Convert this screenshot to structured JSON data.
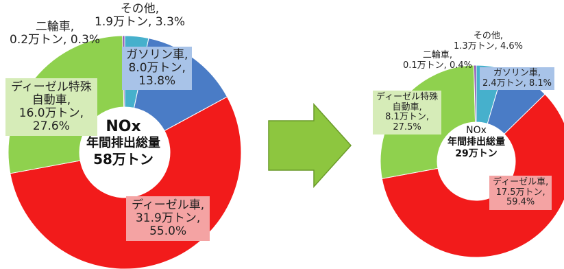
{
  "chart_data": [
    {
      "type": "pie",
      "variant": "donut",
      "center_text": [
        "NOx",
        "年間排出総量",
        "58万トン"
      ],
      "start": "top, clockwise",
      "slices": [
        {
          "name": "その他",
          "amount": "1.9万トン",
          "pct": "3.3%",
          "value": 3.3,
          "color": "#46b0cc"
        },
        {
          "name": "ガソリン車",
          "amount": "8.0万トン",
          "pct": "13.8%",
          "value": 13.8,
          "color": "#4a7cc6"
        },
        {
          "name": "ディーゼル車",
          "amount": "31.9万トン",
          "pct": "55.0%",
          "value": 55.0,
          "color": "#f21b1b"
        },
        {
          "name": "ディーゼル特殊自動車",
          "amount": "16.0万トン",
          "pct": "27.6%",
          "value": 27.6,
          "color": "#8fd14e"
        },
        {
          "name": "二輪車",
          "amount": "0.2万トン",
          "pct": "0.3%",
          "value": 0.3,
          "color": "#8a4fb0"
        }
      ]
    },
    {
      "type": "pie",
      "variant": "donut",
      "center_text": [
        "NOx",
        "年間排出総量",
        "29万トン"
      ],
      "start": "top, clockwise",
      "slices": [
        {
          "name": "その他",
          "amount": "1.3万トン",
          "pct": "4.6%",
          "value": 4.6,
          "color": "#46b0cc"
        },
        {
          "name": "ガソリン車",
          "amount": "2.4万トン",
          "pct": "8.1%",
          "value": 8.1,
          "color": "#4a7cc6"
        },
        {
          "name": "ディーゼル車",
          "amount": "17.5万トン",
          "pct": "59.4%",
          "value": 59.4,
          "color": "#f21b1b"
        },
        {
          "name": "ディーゼル特殊自動車",
          "amount": "8.1万トン",
          "pct": "27.5%",
          "value": 27.5,
          "color": "#8fd14e"
        },
        {
          "name": "二輪車",
          "amount": "0.1万トン",
          "pct": "0.4%",
          "value": 0.4,
          "color": "#8a4fb0"
        }
      ]
    }
  ],
  "labels": {
    "left": {
      "other": [
        "その他,",
        "1.9万トン, 3.3%"
      ],
      "gasoline": [
        "ガソリン車,",
        "8.0万トン,",
        "13.8%"
      ],
      "diesel": [
        "ディーゼル車,",
        "31.9万トン,",
        "55.0%"
      ],
      "special": [
        "ディーゼル特殊",
        "自動車,",
        "16.0万トン,",
        "27.6%"
      ],
      "bike": [
        "二輪車,",
        "0.2万トン, 0.3%"
      ]
    },
    "right": {
      "other": [
        "その他,",
        "1.3万トン, 4.6%"
      ],
      "gasoline": [
        "ガソリン車,",
        "2.4万トン, 8.1%"
      ],
      "diesel": [
        "ディーゼル車,",
        "17.5万トン,",
        "59.4%"
      ],
      "special": [
        "ディーゼル特殊",
        "自動車,",
        "8.1万トン,",
        "27.5%"
      ],
      "bike": [
        "二輪車,",
        "0.1万トン, 0.4%"
      ]
    }
  },
  "colors": {
    "arrow": "#8dc63f",
    "arrow_stroke": "#6a9a2a",
    "label_bg_red": "#f4a3a3",
    "label_bg_blue": "#a8c3e8",
    "label_bg_green": "#d6ecb8",
    "label_bg_cyan": "#c9e8f0"
  }
}
